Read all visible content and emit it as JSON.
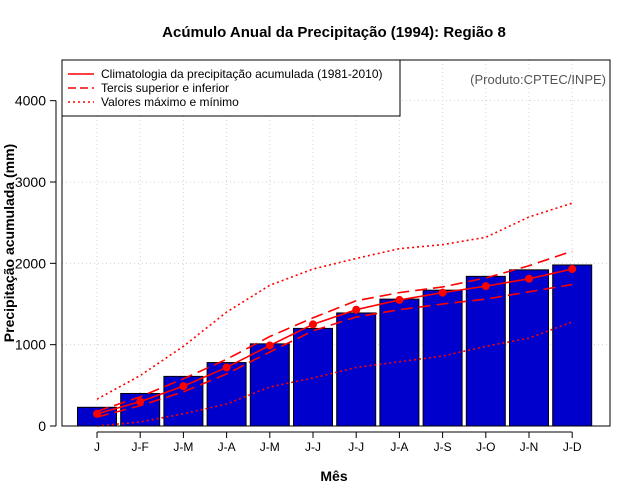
{
  "chart_data": {
    "type": "bar",
    "title": "Acúmulo Anual da Precipitação (1994): Região 8",
    "xlabel": "Mês",
    "ylabel": "Precipitação acumulada (mm)",
    "credit": "(Produto:CPTEC/INPE)",
    "categories": [
      "J",
      "J-F",
      "J-M",
      "J-A",
      "J-M",
      "J-J",
      "J-J",
      "J-A",
      "J-S",
      "J-O",
      "J-N",
      "J-D"
    ],
    "ylim": [
      0,
      4500
    ],
    "yticks": [
      0,
      1000,
      2000,
      3000,
      4000
    ],
    "grid": true,
    "legend_position": "top-left",
    "bar_color": "#0000cc",
    "values": [
      230,
      400,
      610,
      780,
      1010,
      1200,
      1390,
      1560,
      1670,
      1840,
      1920,
      1980
    ],
    "series": [
      {
        "name": "Climatologia da precipitação acumulada (1981-2010)",
        "style": "solid",
        "color": "#ff0000",
        "values": [
          150,
          300,
          490,
          720,
          990,
          1250,
          1430,
          1550,
          1640,
          1720,
          1810,
          1930
        ]
      },
      {
        "name": "Tercis superior e inferior",
        "style": "dashed",
        "color": "#ff0000",
        "values": [
          180,
          360,
          580,
          820,
          1100,
          1330,
          1540,
          1640,
          1710,
          1820,
          1970,
          2150
        ]
      },
      {
        "name": "Tercis superior e inferior (inferior)",
        "style": "dashed",
        "color": "#ff0000",
        "legend": false,
        "values": [
          110,
          250,
          420,
          640,
          910,
          1170,
          1340,
          1430,
          1500,
          1560,
          1650,
          1740
        ]
      },
      {
        "name": "Valores máximo e mínimo",
        "style": "dotted",
        "color": "#ff0000",
        "values": [
          330,
          620,
          980,
          1400,
          1730,
          1930,
          2060,
          2180,
          2230,
          2320,
          2570,
          2740
        ]
      },
      {
        "name": "Valores máximo e mínimo (mínimo)",
        "style": "dotted",
        "color": "#ff0000",
        "legend": false,
        "values": [
          0,
          50,
          150,
          270,
          480,
          590,
          720,
          790,
          860,
          980,
          1080,
          1280
        ]
      }
    ],
    "legend": [
      {
        "label": "Climatologia da precipitação acumulada (1981-2010)",
        "style": "solid"
      },
      {
        "label": "Tercis superior e inferior",
        "style": "dashed"
      },
      {
        "label": "Valores máximo e mínimo",
        "style": "dotted"
      }
    ]
  }
}
